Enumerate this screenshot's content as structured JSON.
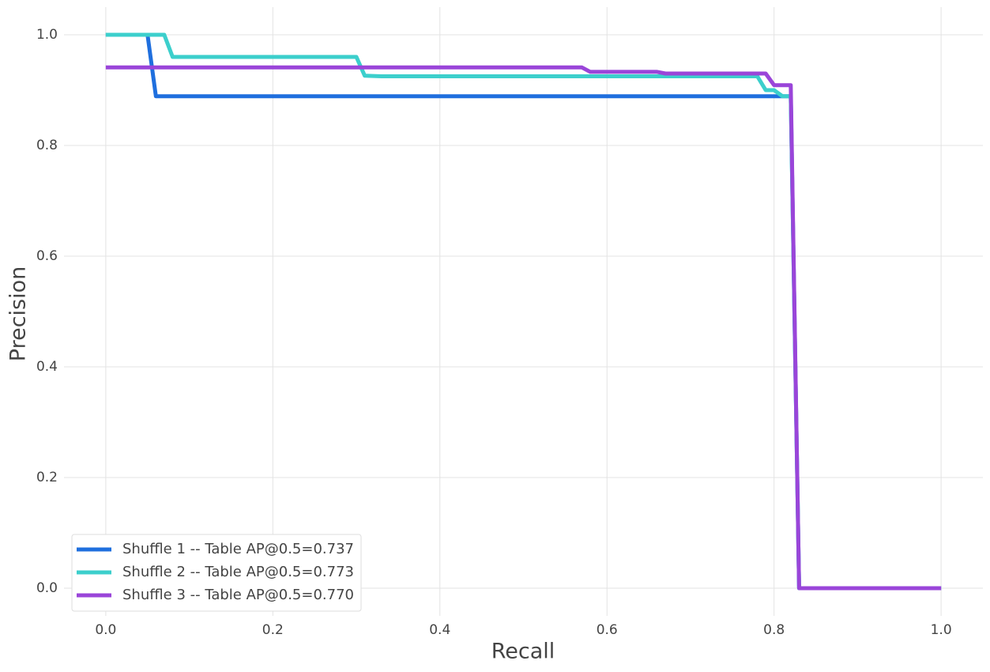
{
  "chart_data": {
    "type": "line",
    "xlabel": "Recall",
    "ylabel": "Precision",
    "xlim": [
      -0.05,
      1.05
    ],
    "ylim": [
      -0.05,
      1.05
    ],
    "xticks": [
      {
        "value": 0,
        "label": "0.0"
      },
      0.2,
      0.4,
      0.6,
      0.8,
      {
        "value": 1,
        "label": "1.0"
      }
    ],
    "yticks": [
      {
        "value": 0,
        "label": "0.0"
      },
      0.2,
      0.4,
      0.6,
      0.8,
      {
        "value": 1,
        "label": "1.0"
      }
    ],
    "grid": true,
    "legend": "lower left",
    "series": [
      {
        "name": "Shuffle 1 -- Table AP@0.5=0.737",
        "color": "#1f6fde",
        "x": [
          0,
          0.05,
          0.06,
          0.82,
          0.83,
          1.0
        ],
        "values": [
          1.0,
          1.0,
          0.889,
          0.889,
          0,
          0
        ]
      },
      {
        "name": "Shuffle 2 -- Table AP@0.5=0.773",
        "color": "#3ccfcc",
        "x": [
          0,
          0.07,
          0.08,
          0.3,
          0.31,
          0.33,
          0.78,
          0.79,
          0.8,
          0.81,
          0.82,
          0.83,
          1.0
        ],
        "values": [
          1.0,
          1.0,
          0.96,
          0.96,
          0.926,
          0.925,
          0.925,
          0.9,
          0.9,
          0.889,
          0.889,
          0,
          0
        ]
      },
      {
        "name": "Shuffle 3 -- Table AP@0.5=0.770",
        "color": "#9a45d9",
        "x": [
          0,
          0.57,
          0.58,
          0.66,
          0.67,
          0.79,
          0.8,
          0.82,
          0.83,
          1.0
        ],
        "values": [
          0.941,
          0.941,
          0.933,
          0.933,
          0.93,
          0.93,
          0.909,
          0.909,
          0,
          0
        ]
      }
    ]
  }
}
